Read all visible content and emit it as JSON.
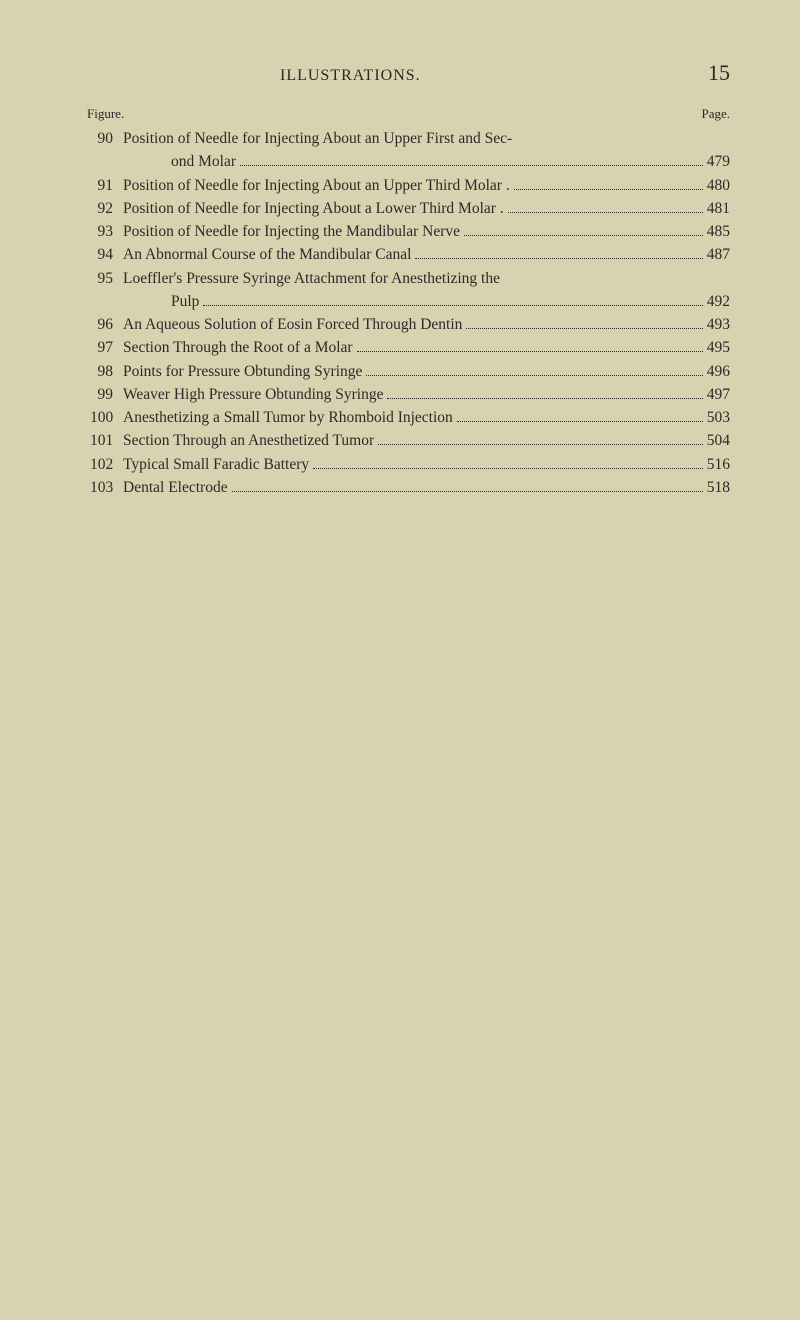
{
  "header": {
    "title": "ILLUSTRATIONS.",
    "pageNumber": "15",
    "figureLabel": "Figure.",
    "pageLabel": "Page."
  },
  "entries": [
    {
      "num": "90",
      "lines": [
        {
          "text": "Position of Needle for Injecting About an Upper First and Sec-",
          "page": "",
          "indent": false,
          "nodots": true
        },
        {
          "text": "ond Molar",
          "page": "479",
          "indent": true
        }
      ]
    },
    {
      "num": "91",
      "lines": [
        {
          "text": "Position of Needle for Injecting About an Upper Third Molar .",
          "page": "480",
          "indent": false
        }
      ]
    },
    {
      "num": "92",
      "lines": [
        {
          "text": "Position of Needle for Injecting About a Lower Third Molar .",
          "page": "481",
          "indent": false
        }
      ]
    },
    {
      "num": "93",
      "lines": [
        {
          "text": "Position of Needle for Injecting the Mandibular Nerve",
          "page": "485",
          "indent": false
        }
      ]
    },
    {
      "num": "94",
      "lines": [
        {
          "text": "An Abnormal Course of the Mandibular Canal",
          "page": "487",
          "indent": false
        }
      ]
    },
    {
      "num": "95",
      "lines": [
        {
          "text": "Loeffler's Pressure Syringe Attachment for Anesthetizing the",
          "page": "",
          "indent": false,
          "nodots": true
        },
        {
          "text": "Pulp",
          "page": "492",
          "indent": true
        }
      ]
    },
    {
      "num": "96",
      "lines": [
        {
          "text": "An Aqueous Solution of Eosin Forced Through Dentin",
          "page": "493",
          "indent": false
        }
      ]
    },
    {
      "num": "97",
      "lines": [
        {
          "text": "Section Through the Root of a Molar",
          "page": "495",
          "indent": false
        }
      ]
    },
    {
      "num": "98",
      "lines": [
        {
          "text": "Points for Pressure Obtunding Syringe",
          "page": "496",
          "indent": false
        }
      ]
    },
    {
      "num": "99",
      "lines": [
        {
          "text": "Weaver High Pressure Obtunding Syringe",
          "page": "497",
          "indent": false
        }
      ]
    },
    {
      "num": "100",
      "lines": [
        {
          "text": "Anesthetizing a Small Tumor by Rhomboid Injection",
          "page": "503",
          "indent": false
        }
      ]
    },
    {
      "num": "101",
      "lines": [
        {
          "text": "Section Through an Anesthetized Tumor",
          "page": "504",
          "indent": false
        }
      ]
    },
    {
      "num": "102",
      "lines": [
        {
          "text": "Typical Small Faradic Battery",
          "page": "516",
          "indent": false
        }
      ]
    },
    {
      "num": "103",
      "lines": [
        {
          "text": "Dental Electrode",
          "page": "518",
          "indent": false
        }
      ]
    }
  ]
}
